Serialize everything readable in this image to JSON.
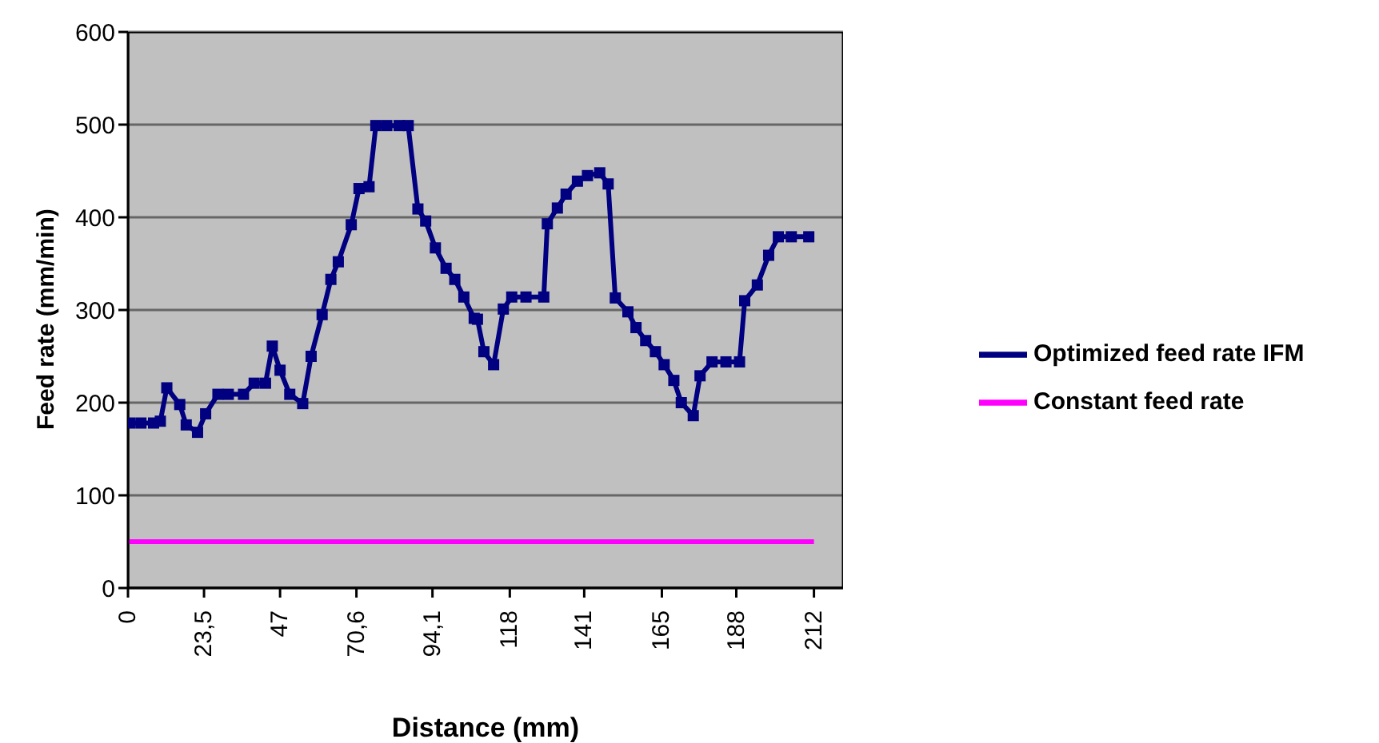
{
  "chart_data": {
    "type": "line",
    "xlabel": "Distance (mm)",
    "ylabel": "Feed rate (mm/min)",
    "xlim": [
      0,
      221
    ],
    "xticks": [
      0,
      {
        "value": 23.5,
        "label": "23,5"
      },
      47,
      {
        "value": 70.6,
        "label": "70,6"
      },
      {
        "value": 94.1,
        "label": "94,1"
      },
      118,
      141,
      165,
      188,
      212
    ],
    "ylim": [
      0,
      600
    ],
    "yticks": [
      0,
      100,
      200,
      300,
      400,
      500,
      600
    ],
    "grid": "y",
    "legend": "right",
    "marker": "square",
    "line_style": "solid",
    "series": [
      {
        "name": "Optimized feed rate IFM",
        "color": "#000080",
        "x": [
          0.5,
          4,
          7.9,
          10,
          12,
          16,
          18,
          21.5,
          24,
          27.8,
          31,
          35.7,
          39,
          42.5,
          44.6,
          47,
          50,
          54,
          56.6,
          60,
          62.7,
          65,
          69,
          71.4,
          74.5,
          76.6,
          80,
          83.8,
          86.6,
          89.6,
          92,
          95,
          98.3,
          101,
          103.8,
          107,
          108,
          110,
          113,
          116,
          118.6,
          123,
          128.5,
          129.6,
          132.7,
          135.4,
          138.9,
          142,
          145.8,
          148.4,
          150.6,
          154.5,
          157,
          160,
          163,
          165.7,
          168.7,
          171,
          174.7,
          176.8,
          180.5,
          184.8,
          189,
          190.6,
          194.5,
          198,
          201,
          205,
          210.4
        ],
        "values": [
          178,
          178,
          178,
          180,
          216,
          198,
          176,
          168,
          188,
          209,
          209,
          209,
          221,
          221,
          261,
          235,
          209,
          199,
          250,
          295,
          333,
          352,
          392,
          431,
          433,
          499,
          499,
          499,
          499,
          409,
          396,
          367,
          345,
          333,
          314,
          291,
          290,
          255,
          241,
          301,
          314,
          314,
          314,
          393,
          410,
          425,
          439,
          445,
          448,
          436,
          313,
          298,
          281,
          267,
          255,
          241,
          224,
          200,
          186,
          229,
          244,
          244,
          244,
          310,
          327,
          359,
          379,
          379,
          379
        ]
      },
      {
        "name": "Constant feed rate",
        "color": "#ff00ff",
        "marker": "none",
        "x": [
          0,
          212
        ],
        "values": [
          50,
          50
        ]
      }
    ]
  }
}
